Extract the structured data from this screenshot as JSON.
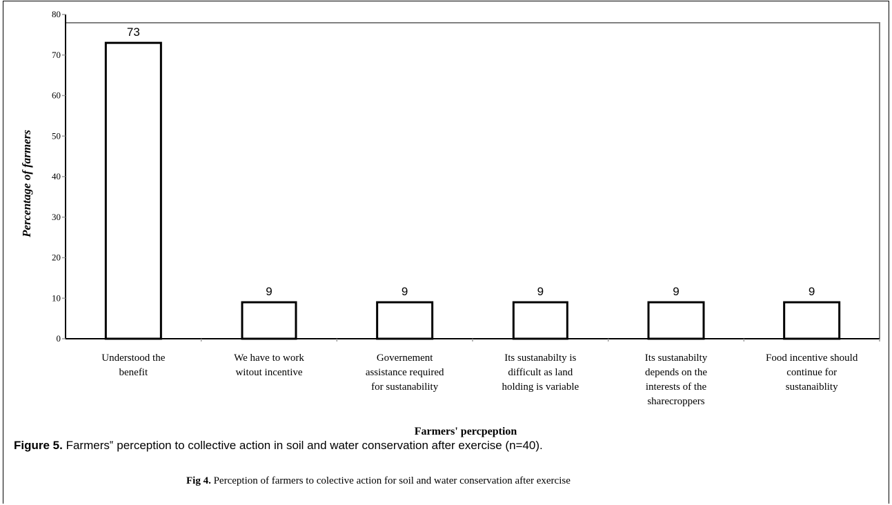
{
  "chart_data": {
    "type": "bar",
    "categories": [
      [
        "Understood the",
        "benefit"
      ],
      [
        "We have to work",
        "witout incentive"
      ],
      [
        "Governement",
        "assistance required",
        "for sustanability"
      ],
      [
        "Its sustanabilty is",
        "difficult as land",
        "holding is variable"
      ],
      [
        "Its sustanabilty",
        "depends on the",
        "interests of the",
        "sharecroppers"
      ],
      [
        "Food incentive should",
        "continue for",
        "sustanaiblity"
      ]
    ],
    "values": [
      73,
      9,
      9,
      9,
      9,
      9
    ],
    "data_labels": [
      "73",
      "9",
      "9",
      "9",
      "9",
      "9"
    ],
    "ylim": [
      0,
      80
    ],
    "yticks": [
      "0",
      "10",
      "20",
      "30",
      "40",
      "50",
      "60",
      "70",
      "80"
    ],
    "ylabel": "Percentage of farmers",
    "xlabel": "Farmers' percpeption",
    "bar_fill": "#ffffff",
    "bar_stroke": "#000000",
    "grid": false
  },
  "captions": {
    "figure5_label": "Figure 5.",
    "figure5_text": " Farmers‟ perception to collective action in soil and water conservation after exercise (n=40).",
    "fig4_label": "Fig 4.",
    "fig4_text": " Perception of farmers to colective action for soil and water conservation after exercise"
  }
}
